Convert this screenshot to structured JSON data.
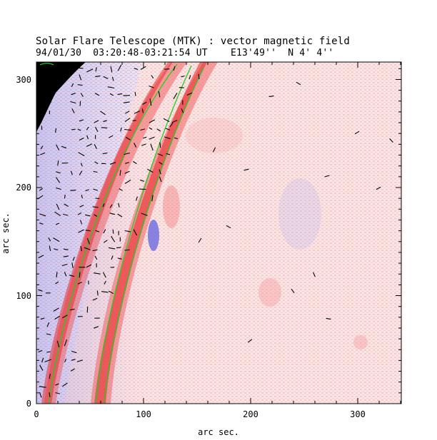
{
  "title": "Solar Flare Telescope (MTK) : vector magnetic field",
  "subtitle_date": "94/01/30",
  "subtitle_time": "03:20:48-03:21:54 UT",
  "subtitle_pos": "E13'49''  N 4' 4''",
  "xlabel": "arc sec.",
  "ylabel": "arc sec.",
  "x_ticks": [
    "0",
    "100",
    "200",
    "300"
  ],
  "y_ticks": [
    "0",
    "100",
    "200",
    "300"
  ],
  "xlim": [
    0,
    340
  ],
  "ylim": [
    0,
    316
  ],
  "colors": {
    "positive": "#f08080",
    "negative": "#8a8ae8",
    "neutral_line": "#22cc22",
    "limb_off_disk": "#000000",
    "vector": "#000000"
  }
}
